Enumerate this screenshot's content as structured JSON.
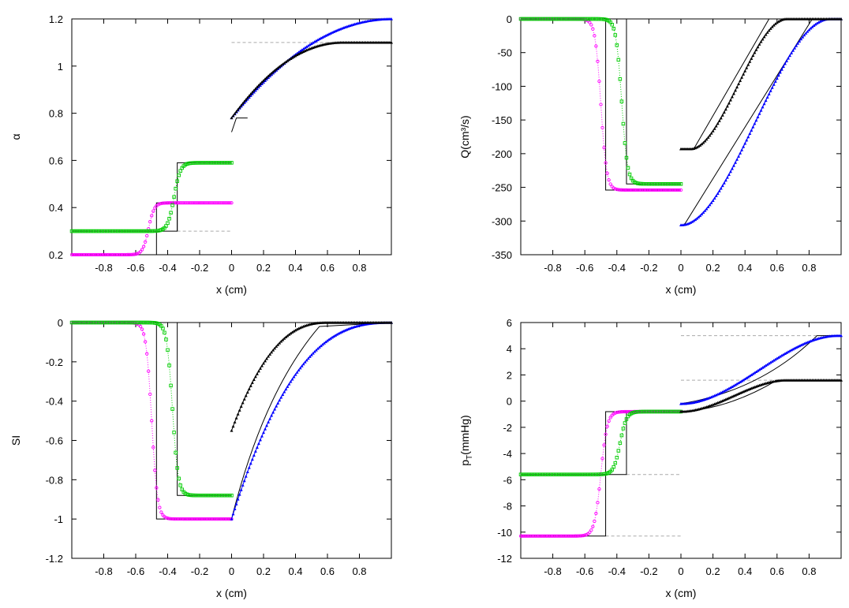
{
  "chart_data": [
    {
      "id": "alpha",
      "type": "line",
      "ylabel": "α",
      "xlabel": "x (cm)",
      "xlim": [
        -1,
        1
      ],
      "ylim": [
        0.2,
        1.2
      ],
      "xticks": [
        -0.8,
        -0.6,
        -0.4,
        -0.2,
        0,
        0.2,
        0.4,
        0.6,
        0.8
      ],
      "xtick_labels": [
        "-0.8",
        "-0.6",
        "-0.4",
        "-0.2",
        "0",
        "0.2",
        "0.4",
        "0.6",
        "0.8"
      ],
      "yticks": [
        0.2,
        0.4,
        0.6,
        0.8,
        1,
        1.2
      ],
      "ytick_labels": [
        "0.2",
        "0.4",
        "0.6",
        "0.8",
        "1",
        "1.2"
      ],
      "colors": {
        "magenta": "#ff00ff",
        "green": "#00cc00",
        "blue": "#0000ff",
        "black": "#000000",
        "dashed": "#aaaaaa"
      },
      "curves": {
        "left_init": 0.2,
        "left_mid": 0.42,
        "left_alt": 0.3,
        "left_alt_mid": 0.59,
        "shock1": -0.47,
        "shock2": -0.34,
        "jump_right": 0.78,
        "right_end_blue": 1.2,
        "right_end_black": 1.1,
        "reach_blue": 1.0,
        "reach_black": 0.62
      }
    },
    {
      "id": "Q",
      "type": "line",
      "ylabel": "Q(cm³/s)",
      "xlabel": "x (cm)",
      "xlim": [
        -1,
        1
      ],
      "ylim": [
        -350,
        0
      ],
      "xticks": [
        -0.8,
        -0.6,
        -0.4,
        -0.2,
        0,
        0.2,
        0.4,
        0.6,
        0.8
      ],
      "xtick_labels": [
        "-0.8",
        "-0.6",
        "-0.4",
        "-0.2",
        "0",
        "0.2",
        "0.4",
        "0.6",
        "0.8"
      ],
      "yticks": [
        -350,
        -300,
        -250,
        -200,
        -150,
        -100,
        -50,
        0
      ],
      "ytick_labels": [
        "-350",
        "-300",
        "-250",
        "-200",
        "-150",
        "-100",
        "-50",
        "0"
      ],
      "colors": {
        "magenta": "#ff00ff",
        "green": "#00cc00",
        "blue": "#0000ff",
        "black": "#000000",
        "dashed": "#aaaaaa"
      },
      "curves": {
        "left_init": 0,
        "left_mid_magenta": -254,
        "left_mid_green": -245,
        "shock1": -0.47,
        "shock2": -0.34,
        "blue_start": -306,
        "black_start": -193,
        "blue_reach": 0.82,
        "black_reach": 0.55
      }
    },
    {
      "id": "SI",
      "type": "line",
      "ylabel": "SI",
      "xlabel": "x (cm)",
      "xlim": [
        -1,
        1
      ],
      "ylim": [
        -1.2,
        0
      ],
      "xticks": [
        -0.8,
        -0.6,
        -0.4,
        -0.2,
        0,
        0.2,
        0.4,
        0.6,
        0.8
      ],
      "xtick_labels": [
        "-0.8",
        "-0.6",
        "-0.4",
        "-0.2",
        "0",
        "0.2",
        "0.4",
        "0.6",
        "0.8"
      ],
      "yticks": [
        -1.2,
        -1,
        -0.8,
        -0.6,
        -0.4,
        -0.2,
        0
      ],
      "ytick_labels": [
        "-1.2",
        "-1",
        "-0.8",
        "-0.6",
        "-0.4",
        "-0.2",
        "0"
      ],
      "colors": {
        "magenta": "#ff00ff",
        "green": "#00cc00",
        "blue": "#0000ff",
        "black": "#000000",
        "dashed": "#aaaaaa"
      },
      "curves": {
        "left_init": 0,
        "left_mid_magenta": -1.0,
        "left_mid_green": -0.88,
        "shock1": -0.47,
        "shock2": -0.34,
        "blue_start": -1.0,
        "black_start": -0.55
      }
    },
    {
      "id": "pT",
      "type": "line",
      "ylabel": "pT(mmHg)",
      "ylabel_main": "p",
      "ylabel_sub": "T",
      "ylabel_rest": "(mmHg)",
      "xlabel": "x (cm)",
      "xlim": [
        -1,
        1
      ],
      "ylim": [
        -12,
        6
      ],
      "xticks": [
        -0.8,
        -0.6,
        -0.4,
        -0.2,
        0,
        0.2,
        0.4,
        0.6,
        0.8
      ],
      "xtick_labels": [
        "-0.8",
        "-0.6",
        "-0.4",
        "-0.2",
        "0",
        "0.2",
        "0.4",
        "0.6",
        "0.8"
      ],
      "yticks": [
        -12,
        -10,
        -8,
        -6,
        -4,
        -2,
        0,
        2,
        4,
        6
      ],
      "ytick_labels": [
        "-12",
        "-10",
        "-8",
        "-6",
        "-4",
        "-2",
        "0",
        "2",
        "4",
        "6"
      ],
      "colors": {
        "magenta": "#ff00ff",
        "green": "#00cc00",
        "blue": "#0000ff",
        "black": "#000000",
        "dashed": "#aaaaaa"
      },
      "curves": {
        "left_init_magenta": -10.3,
        "left_init_green": -5.6,
        "left_mid": -0.8,
        "shock1": -0.47,
        "shock2": -0.34,
        "blue_start": -0.2,
        "blue_end": 5.0,
        "black_start": -0.8,
        "black_end": 1.6,
        "blue_reach": 0.85,
        "black_reach": 0.6
      }
    }
  ]
}
